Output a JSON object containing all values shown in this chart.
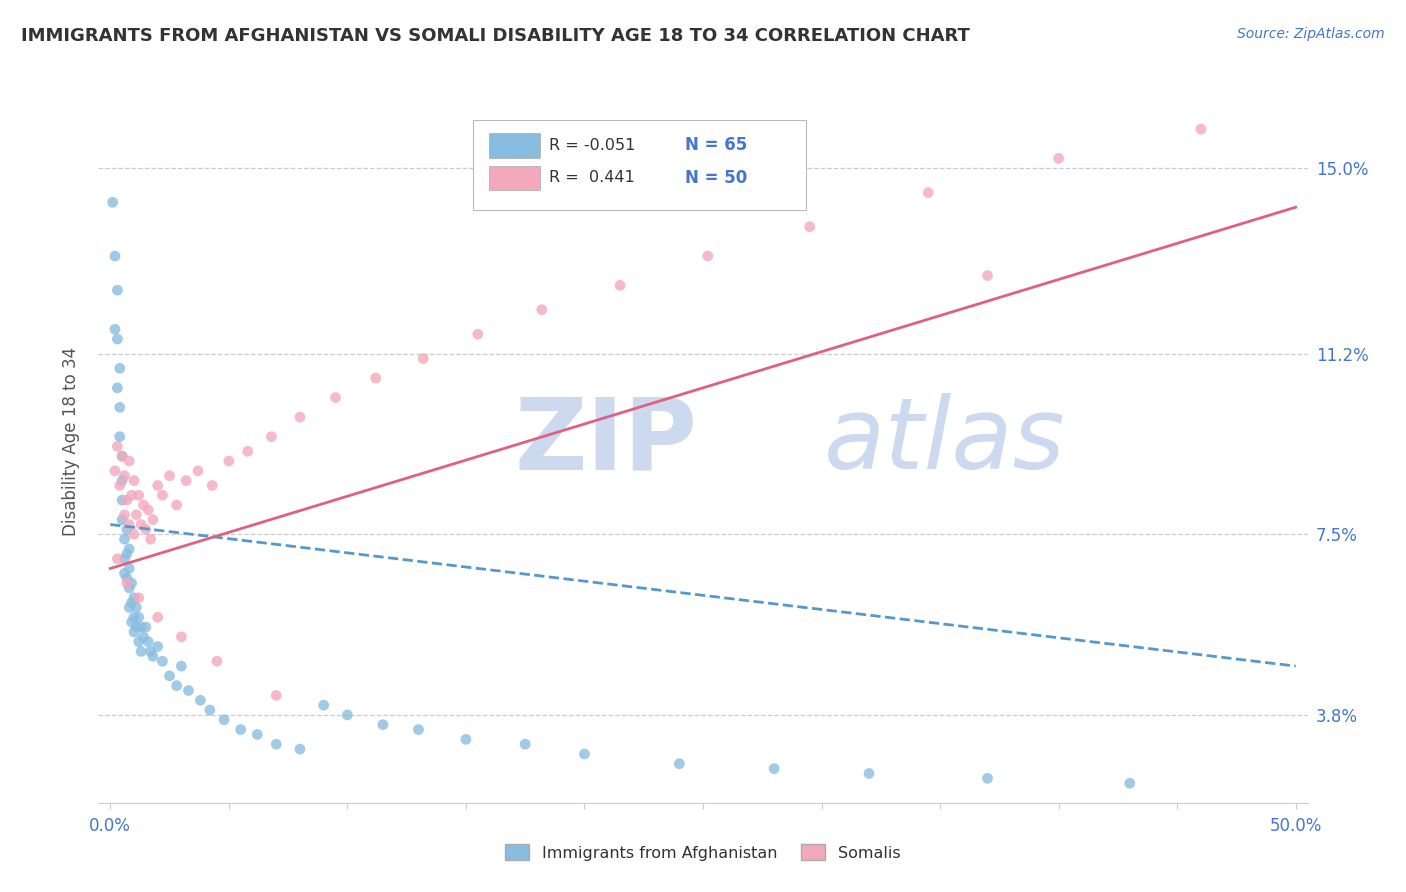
{
  "title": "IMMIGRANTS FROM AFGHANISTAN VS SOMALI DISABILITY AGE 18 TO 34 CORRELATION CHART",
  "source": "Source: ZipAtlas.com",
  "ylabel": "Disability Age 18 to 34",
  "xlim": [
    -0.005,
    0.505
  ],
  "ylim": [
    0.02,
    0.168
  ],
  "xticks": [
    0.0,
    0.05,
    0.1,
    0.15,
    0.2,
    0.25,
    0.3,
    0.35,
    0.4,
    0.45,
    0.5
  ],
  "xticklabels_shown": {
    "0": "0.0%",
    "10": "50.0%"
  },
  "ytick_values": [
    0.038,
    0.075,
    0.112,
    0.15
  ],
  "ytick_labels": [
    "3.8%",
    "7.5%",
    "11.2%",
    "15.0%"
  ],
  "color_afghan": "#89bde0",
  "color_somali": "#f4a8bc",
  "color_blue_text": "#4477CC",
  "trend_afghan_color": "#5599cc",
  "trend_somali_color": "#e06080",
  "background_color": "#ffffff",
  "grid_color": "#cccccc",
  "watermark_color": "#ccd9ee",
  "af_x": [
    0.001,
    0.002,
    0.002,
    0.003,
    0.003,
    0.003,
    0.004,
    0.004,
    0.004,
    0.005,
    0.005,
    0.005,
    0.005,
    0.006,
    0.006,
    0.006,
    0.007,
    0.007,
    0.007,
    0.008,
    0.008,
    0.008,
    0.008,
    0.009,
    0.009,
    0.009,
    0.01,
    0.01,
    0.01,
    0.011,
    0.011,
    0.012,
    0.012,
    0.013,
    0.013,
    0.014,
    0.015,
    0.016,
    0.017,
    0.018,
    0.02,
    0.022,
    0.025,
    0.028,
    0.03,
    0.033,
    0.038,
    0.042,
    0.048,
    0.055,
    0.062,
    0.07,
    0.08,
    0.09,
    0.1,
    0.115,
    0.13,
    0.15,
    0.175,
    0.2,
    0.24,
    0.28,
    0.32,
    0.37,
    0.43
  ],
  "af_y": [
    0.143,
    0.132,
    0.117,
    0.125,
    0.115,
    0.105,
    0.109,
    0.101,
    0.095,
    0.091,
    0.086,
    0.082,
    0.078,
    0.074,
    0.07,
    0.067,
    0.076,
    0.071,
    0.066,
    0.072,
    0.068,
    0.064,
    0.06,
    0.065,
    0.061,
    0.057,
    0.062,
    0.058,
    0.055,
    0.06,
    0.056,
    0.058,
    0.053,
    0.056,
    0.051,
    0.054,
    0.056,
    0.053,
    0.051,
    0.05,
    0.052,
    0.049,
    0.046,
    0.044,
    0.048,
    0.043,
    0.041,
    0.039,
    0.037,
    0.035,
    0.034,
    0.032,
    0.031,
    0.04,
    0.038,
    0.036,
    0.035,
    0.033,
    0.032,
    0.03,
    0.028,
    0.027,
    0.026,
    0.025,
    0.024
  ],
  "so_x": [
    0.002,
    0.003,
    0.004,
    0.005,
    0.006,
    0.006,
    0.007,
    0.008,
    0.008,
    0.009,
    0.01,
    0.01,
    0.011,
    0.012,
    0.013,
    0.014,
    0.015,
    0.016,
    0.017,
    0.018,
    0.02,
    0.022,
    0.025,
    0.028,
    0.032,
    0.037,
    0.043,
    0.05,
    0.058,
    0.068,
    0.08,
    0.095,
    0.112,
    0.132,
    0.155,
    0.182,
    0.215,
    0.252,
    0.295,
    0.345,
    0.4,
    0.46,
    0.003,
    0.007,
    0.012,
    0.02,
    0.03,
    0.045,
    0.07,
    0.37
  ],
  "so_y": [
    0.088,
    0.093,
    0.085,
    0.091,
    0.079,
    0.087,
    0.082,
    0.077,
    0.09,
    0.083,
    0.086,
    0.075,
    0.079,
    0.083,
    0.077,
    0.081,
    0.076,
    0.08,
    0.074,
    0.078,
    0.085,
    0.083,
    0.087,
    0.081,
    0.086,
    0.088,
    0.085,
    0.09,
    0.092,
    0.095,
    0.099,
    0.103,
    0.107,
    0.111,
    0.116,
    0.121,
    0.126,
    0.132,
    0.138,
    0.145,
    0.152,
    0.158,
    0.07,
    0.065,
    0.062,
    0.058,
    0.054,
    0.049,
    0.042,
    0.128
  ],
  "trend_af_x0": 0.0,
  "trend_af_x1": 0.5,
  "trend_af_y0": 0.077,
  "trend_af_y1": 0.048,
  "trend_so_x0": 0.0,
  "trend_so_x1": 0.5,
  "trend_so_y0": 0.068,
  "trend_so_y1": 0.142
}
